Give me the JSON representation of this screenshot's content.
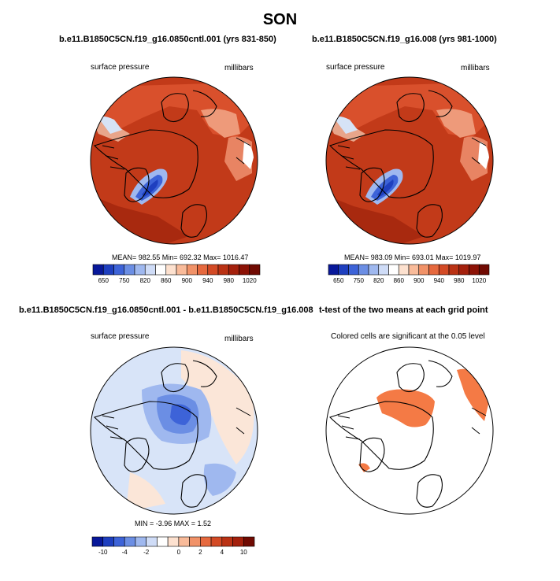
{
  "figure": {
    "title": "SON"
  },
  "chart_data": [
    {
      "type": "heatmap",
      "projection": "north-polar-stereographic",
      "title": "b.e11.B1850C5CN.f19_g16.0850cntl.001 (yrs 831-850)",
      "left_label": "surface pressure",
      "right_label": "millibars",
      "variable": "surface pressure",
      "units": "millibars",
      "stats": {
        "mean": 982.55,
        "min": 692.32,
        "max": 1016.47
      },
      "stats_text": "MEAN= 982.55  Min= 692.32  Max= 1016.47",
      "colorbar": {
        "tick_labels": [
          "650",
          "750",
          "820",
          "860",
          "900",
          "940",
          "980",
          "1020"
        ],
        "colors": [
          "#08189a",
          "#1e3fbf",
          "#3d63d8",
          "#6b8ee4",
          "#9fb8ef",
          "#cfdcf7",
          "#ffffff",
          "#fde1cf",
          "#f9bb9a",
          "#f19268",
          "#e6693e",
          "#d34a25",
          "#ba3214",
          "#a4200c",
          "#8c1205",
          "#700a02"
        ]
      }
    },
    {
      "type": "heatmap",
      "projection": "north-polar-stereographic",
      "title": "b.e11.B1850C5CN.f19_g16.008 (yrs 981-1000)",
      "left_label": "surface pressure",
      "right_label": "millibars",
      "variable": "surface pressure",
      "units": "millibars",
      "stats": {
        "mean": 983.09,
        "min": 693.01,
        "max": 1019.97
      },
      "stats_text": "MEAN= 983.09  Min= 693.01  Max= 1019.97",
      "colorbar": {
        "tick_labels": [
          "650",
          "750",
          "820",
          "860",
          "900",
          "940",
          "980",
          "1020"
        ],
        "colors": [
          "#08189a",
          "#1e3fbf",
          "#3d63d8",
          "#6b8ee4",
          "#9fb8ef",
          "#cfdcf7",
          "#ffffff",
          "#fde1cf",
          "#f9bb9a",
          "#f19268",
          "#e6693e",
          "#d34a25",
          "#ba3214",
          "#a4200c",
          "#8c1205",
          "#700a02"
        ]
      }
    },
    {
      "type": "heatmap",
      "projection": "north-polar-stereographic",
      "title": "b.e11.B1850C5CN.f19_g16.0850cntl.001 - b.e11.B1850C5CN.f19_g16.008",
      "left_label": "surface pressure",
      "right_label": "millibars",
      "variable": "surface pressure difference",
      "units": "millibars",
      "stats": {
        "min": -3.96,
        "max": 1.52
      },
      "stats_text": "MIN =  -3.96 MAX =   1.52",
      "colorbar": {
        "tick_labels": [
          "-10",
          "-4",
          "-2",
          "0",
          "2",
          "4",
          "10"
        ],
        "colors": [
          "#08189a",
          "#1e3fbf",
          "#3d63d8",
          "#6b8ee4",
          "#9fb8ef",
          "#cfdcf7",
          "#ffffff",
          "#fde1cf",
          "#f9bb9a",
          "#f19268",
          "#e6693e",
          "#d34a25",
          "#ba3214",
          "#a4200c",
          "#700a02"
        ]
      }
    },
    {
      "type": "heatmap",
      "projection": "north-polar-stereographic",
      "title": "t-test of the two means at each grid point",
      "center_label": "Colored cells are significant at the 0.05 level",
      "significance_level": 0.05,
      "significant_color": "#f47a45"
    }
  ]
}
